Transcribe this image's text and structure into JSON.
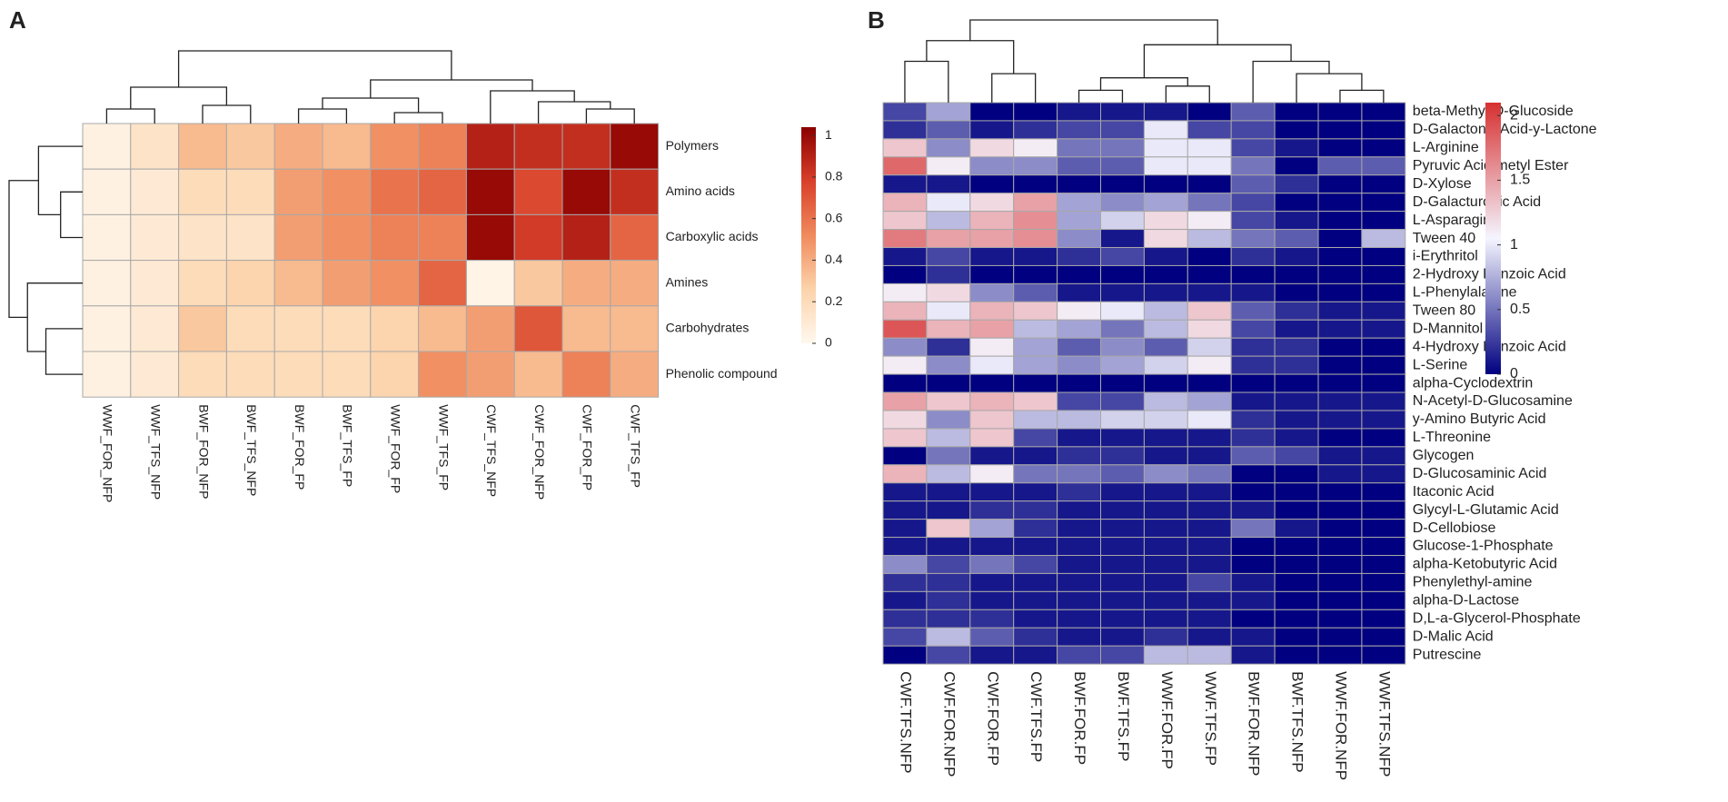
{
  "chart_data": [
    {
      "type": "heatmap",
      "label": "A",
      "x_categories": [
        "WWF_FOR_NFP",
        "WWF_TFS_NFP",
        "BWF_FOR_NFP",
        "BWF_TFS_NFP",
        "BWF_FOR_FP",
        "BWF_TFS_FP",
        "WWF_FOR_FP",
        "WWF_TFS_FP",
        "CWF_TFS_NFP",
        "CWF_FOR_NFP",
        "CWF_FOR_FP",
        "CWF_TFS_FP"
      ],
      "y_categories": [
        "Polymers",
        "Amino acids",
        "Carboxylic acids",
        "Amines",
        "Carbohydrates",
        "Phenolic compound"
      ],
      "values": [
        [
          0.05,
          0.15,
          0.35,
          0.3,
          0.4,
          0.35,
          0.5,
          0.55,
          0.9,
          0.85,
          0.85,
          1.0
        ],
        [
          0.05,
          0.1,
          0.2,
          0.2,
          0.45,
          0.5,
          0.6,
          0.65,
          1.0,
          0.75,
          1.0,
          0.85
        ],
        [
          0.05,
          0.1,
          0.15,
          0.15,
          0.45,
          0.5,
          0.55,
          0.55,
          1.0,
          0.8,
          0.9,
          0.65
        ],
        [
          0.05,
          0.1,
          0.2,
          0.25,
          0.35,
          0.45,
          0.5,
          0.65,
          0.03,
          0.3,
          0.4,
          0.4
        ],
        [
          0.05,
          0.1,
          0.3,
          0.2,
          0.2,
          0.2,
          0.25,
          0.35,
          0.45,
          0.7,
          0.35,
          0.35
        ],
        [
          0.05,
          0.1,
          0.2,
          0.2,
          0.2,
          0.2,
          0.25,
          0.5,
          0.45,
          0.35,
          0.55,
          0.4
        ]
      ],
      "zlim": [
        0,
        1.04
      ],
      "zticks": [
        0,
        0.2,
        0.4,
        0.6,
        0.8,
        1
      ],
      "colors": [
        "#fff8ee",
        "#fcd3aa",
        "#f08a5d",
        "#d8402a",
        "#8b0000"
      ]
    },
    {
      "type": "heatmap",
      "label": "B",
      "x_categories": [
        "CWF.TFS.NFP",
        "CWF.FOR.NFP",
        "CWF.FOR.FP",
        "CWF.TFS.FP",
        "BWF.FOR.FP",
        "BWF.TFS.FP",
        "WWF.FOR.FP",
        "WWF.TFS.FP",
        "BWF.FOR.NFP",
        "BWF.TFS.NFP",
        "WWF.FOR.NFP",
        "WWF.TFS.NFP"
      ],
      "y_categories": [
        "beta-Methyl-D-Glucoside",
        "D-Galactonic Acid-y-Lactone",
        "L-Arginine",
        "Pyruvic Acid metyl Ester",
        "D-Xylose",
        "D-Galacturonic Acid",
        "L-Asparagine",
        "Tween 40",
        "i-Erythritol",
        "2-Hydroxy Benzoic Acid",
        "L-Phenylalanine",
        "Tween 80",
        "D-Mannitol",
        "4-Hydroxy Benzoic Acid",
        "L-Serine",
        "alpha-Cyclodextrin",
        "N-Acetyl-D-Glucosamine",
        "y-Amino Butyric Acid",
        "L-Threonine",
        "Glycogen",
        "D-Glucosaminic Acid",
        "Itaconic Acid",
        "Glycyl-L-Glutamic Acid",
        "D-Cellobiose",
        "Glucose-1-Phosphate",
        "alpha-Ketobutyric Acid",
        "Phenylethyl-amine",
        "alpha-D-Lactose",
        "D,L-a-Glycerol-Phosphate",
        "D-Malic Acid",
        "Putrescine"
      ],
      "values": [
        [
          0.3,
          0.7,
          0,
          0,
          0.1,
          0.1,
          0.1,
          0,
          0.4,
          0,
          0,
          0
        ],
        [
          0.2,
          0.4,
          0.1,
          0.2,
          0.3,
          0.3,
          1.0,
          0.3,
          0.3,
          0,
          0,
          0
        ],
        [
          1.3,
          0.6,
          1.2,
          1.1,
          0.5,
          0.5,
          1.0,
          1.0,
          0.3,
          0.1,
          0,
          0
        ],
        [
          1.8,
          1.1,
          0.6,
          0.6,
          0.4,
          0.4,
          1.0,
          1.0,
          0.5,
          0,
          0.4,
          0.4
        ],
        [
          0.1,
          0.1,
          0,
          0,
          0,
          0,
          0,
          0,
          0.4,
          0.2,
          0,
          0
        ],
        [
          1.4,
          1.0,
          1.2,
          1.5,
          0.7,
          0.6,
          0.7,
          0.5,
          0.3,
          0,
          0,
          0
        ],
        [
          1.3,
          0.8,
          1.4,
          1.6,
          0.7,
          0.9,
          1.2,
          1.1,
          0.3,
          0.1,
          0,
          0
        ],
        [
          1.7,
          1.5,
          1.5,
          1.6,
          0.6,
          0.1,
          1.2,
          0.8,
          0.5,
          0.4,
          0,
          0.8
        ],
        [
          0.1,
          0.3,
          0.1,
          0.1,
          0.2,
          0.3,
          0.1,
          0,
          0.2,
          0.1,
          0,
          0
        ],
        [
          0,
          0.2,
          0,
          0,
          0,
          0,
          0,
          0,
          0,
          0,
          0,
          0
        ],
        [
          1.1,
          1.2,
          0.6,
          0.4,
          0.1,
          0.1,
          0.1,
          0.1,
          0.1,
          0,
          0,
          0
        ],
        [
          1.4,
          1.0,
          1.4,
          1.3,
          1.1,
          1.0,
          0.8,
          1.3,
          0.4,
          0.2,
          0.1,
          0.1
        ],
        [
          1.9,
          1.4,
          1.5,
          0.8,
          0.7,
          0.5,
          0.8,
          1.2,
          0.3,
          0.1,
          0.1,
          0.1
        ],
        [
          0.6,
          0.2,
          1.1,
          0.7,
          0.4,
          0.6,
          0.4,
          0.9,
          0.2,
          0.2,
          0,
          0
        ],
        [
          1.1,
          0.6,
          1.0,
          0.7,
          0.6,
          0.7,
          0.9,
          1.1,
          0.2,
          0.2,
          0,
          0
        ],
        [
          0,
          0,
          0,
          0,
          0,
          0,
          0,
          0,
          0,
          0,
          0,
          0
        ],
        [
          1.5,
          1.3,
          1.4,
          1.3,
          0.3,
          0.3,
          0.8,
          0.7,
          0.1,
          0.1,
          0.1,
          0.1
        ],
        [
          1.2,
          0.6,
          1.3,
          0.8,
          0.8,
          0.9,
          0.9,
          1.0,
          0.2,
          0.1,
          0.1,
          0.1
        ],
        [
          1.3,
          0.8,
          1.3,
          0.3,
          0.1,
          0.1,
          0.1,
          0.1,
          0.2,
          0.1,
          0,
          0
        ],
        [
          0,
          0.5,
          0.1,
          0.1,
          0.2,
          0.2,
          0.1,
          0.1,
          0.4,
          0.3,
          0.1,
          0.1
        ],
        [
          1.4,
          0.8,
          1.1,
          0.5,
          0.5,
          0.4,
          0.6,
          0.5,
          0,
          0,
          0.1,
          0.1
        ],
        [
          0.1,
          0.1,
          0.1,
          0.1,
          0.2,
          0.1,
          0.1,
          0.1,
          0,
          0,
          0,
          0
        ],
        [
          0.1,
          0.1,
          0.2,
          0.2,
          0.1,
          0.1,
          0.1,
          0.1,
          0.1,
          0,
          0,
          0
        ],
        [
          0.1,
          1.3,
          0.7,
          0.2,
          0.1,
          0.1,
          0.1,
          0.1,
          0.5,
          0.1,
          0,
          0
        ],
        [
          0.1,
          0.1,
          0.1,
          0.1,
          0.1,
          0.1,
          0.1,
          0.1,
          0,
          0,
          0,
          0
        ],
        [
          0.6,
          0.3,
          0.5,
          0.3,
          0.1,
          0.1,
          0.1,
          0.1,
          0,
          0,
          0,
          0
        ],
        [
          0.2,
          0.2,
          0.1,
          0.1,
          0.1,
          0.1,
          0.1,
          0.3,
          0.1,
          0,
          0,
          0
        ],
        [
          0.1,
          0.2,
          0.1,
          0.1,
          0.1,
          0.1,
          0.1,
          0.1,
          0.1,
          0,
          0,
          0
        ],
        [
          0.2,
          0.2,
          0.2,
          0.1,
          0.1,
          0.1,
          0.1,
          0.1,
          0,
          0,
          0,
          0
        ],
        [
          0.3,
          0.8,
          0.4,
          0.2,
          0.1,
          0.1,
          0.2,
          0.1,
          0.1,
          0,
          0,
          0
        ],
        [
          0,
          0.3,
          0.1,
          0.1,
          0.3,
          0.3,
          0.8,
          0.8,
          0.1,
          0,
          0,
          0
        ]
      ],
      "zlim": [
        0,
        2.1
      ],
      "zticks": [
        0,
        0.5,
        1,
        1.5,
        2
      ],
      "colors": [
        "#000080",
        "#f5f5ff",
        "#d63030"
      ]
    }
  ]
}
